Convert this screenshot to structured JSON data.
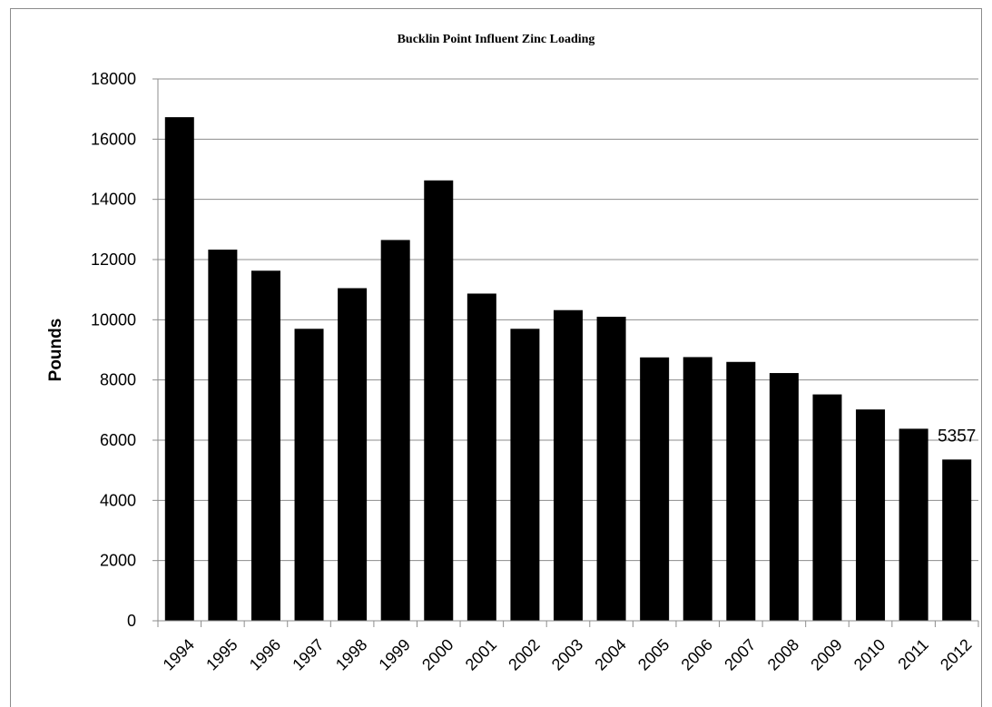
{
  "chart_data": {
    "type": "bar",
    "title": "Bucklin Point Influent Zinc Loading",
    "xlabel": "",
    "ylabel": "Pounds",
    "categories": [
      "1994",
      "1995",
      "1996",
      "1997",
      "1998",
      "1999",
      "2000",
      "2001",
      "2002",
      "2003",
      "2004",
      "2005",
      "2006",
      "2007",
      "2008",
      "2009",
      "2010",
      "2011",
      "2012"
    ],
    "values": [
      16730,
      12330,
      11630,
      9700,
      11050,
      12650,
      14630,
      10870,
      9700,
      10320,
      10100,
      8750,
      8760,
      8600,
      8230,
      7520,
      7020,
      6380,
      5357
    ],
    "ylim": [
      0,
      18000
    ],
    "yticks": [
      "0",
      "2000",
      "4000",
      "6000",
      "8000",
      "10000",
      "12000",
      "14000",
      "16000",
      "18000"
    ],
    "data_labels": [
      {
        "category": "2012",
        "text": "5357"
      }
    ],
    "grid": true,
    "legend": "none",
    "bar_color": "#000000",
    "grid_color": "#8c8c8c"
  }
}
